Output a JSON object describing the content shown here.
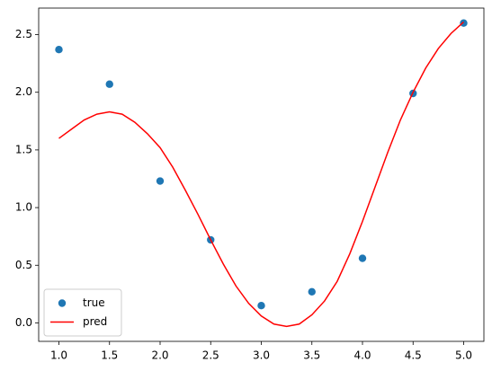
{
  "chart_data": {
    "type": "line",
    "xlim": [
      0.8,
      5.2
    ],
    "ylim": [
      -0.16,
      2.73
    ],
    "xticks": [
      {
        "value": 1,
        "label": "1.0"
      },
      {
        "value": 1.5,
        "label": "1.5"
      },
      {
        "value": 2,
        "label": "2.0"
      },
      {
        "value": 2.5,
        "label": "2.5"
      },
      {
        "value": 3,
        "label": "3.0"
      },
      {
        "value": 3.5,
        "label": "3.5"
      },
      {
        "value": 4,
        "label": "4.0"
      },
      {
        "value": 4.5,
        "label": "4.5"
      },
      {
        "value": 5,
        "label": "5.0"
      }
    ],
    "yticks": [
      {
        "value": 0,
        "label": "0.0"
      },
      {
        "value": 0.5,
        "label": "0.5"
      },
      {
        "value": 1,
        "label": "1.0"
      },
      {
        "value": 1.5,
        "label": "1.5"
      },
      {
        "value": 2,
        "label": "2.0"
      },
      {
        "value": 2.5,
        "label": "2.5"
      }
    ],
    "legend": "lower left",
    "series": [
      {
        "name": "true",
        "type": "scatter",
        "color": "#1f77b4",
        "x": [
          1,
          1.5,
          2,
          2.5,
          3,
          3.5,
          4,
          4.5,
          5
        ],
        "values": [
          2.37,
          2.07,
          1.23,
          0.72,
          0.15,
          0.27,
          0.56,
          1.99,
          2.6
        ]
      },
      {
        "name": "pred",
        "type": "line",
        "color": "#ff0000",
        "x": [
          1,
          1.125,
          1.25,
          1.375,
          1.5,
          1.625,
          1.75,
          1.875,
          2,
          2.125,
          2.25,
          2.375,
          2.5,
          2.625,
          2.75,
          2.875,
          3,
          3.125,
          3.25,
          3.375,
          3.5,
          3.625,
          3.75,
          3.875,
          4,
          4.125,
          4.25,
          4.375,
          4.5,
          4.625,
          4.75,
          4.875,
          5
        ],
        "values": [
          1.6,
          1.68,
          1.76,
          1.81,
          1.83,
          1.81,
          1.74,
          1.64,
          1.52,
          1.35,
          1.15,
          0.94,
          0.72,
          0.51,
          0.32,
          0.17,
          0.06,
          -0.01,
          -0.03,
          -0.01,
          0.07,
          0.19,
          0.36,
          0.6,
          0.88,
          1.18,
          1.48,
          1.76,
          2.0,
          2.21,
          2.38,
          2.51,
          2.61
        ]
      }
    ]
  }
}
